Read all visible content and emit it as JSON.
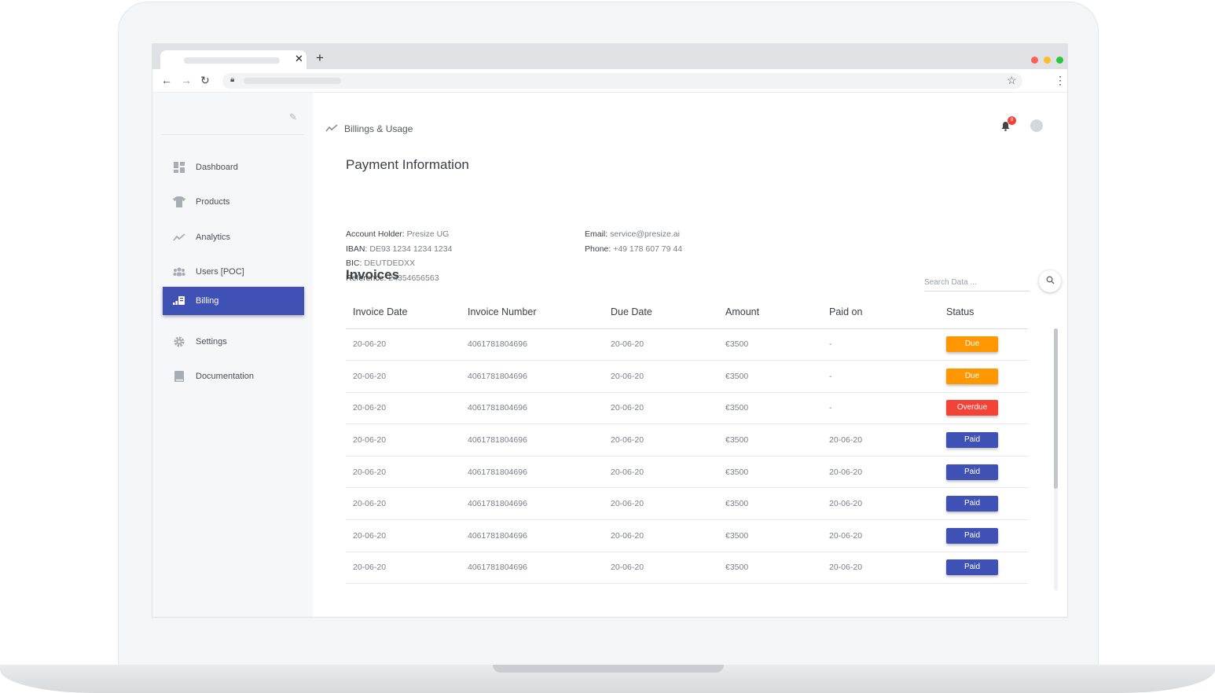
{
  "colors": {
    "accent": "#3f51b5",
    "due": "#ff9800",
    "overdue": "#f44336",
    "paid": "#3f51b5"
  },
  "browser": {
    "window_controls": [
      "#fb5f57",
      "#fdbc2e",
      "#2ac840"
    ],
    "icons": {
      "back": "arrow-left-icon",
      "forward": "arrow-right-icon",
      "reload": "reload-icon",
      "lock": "lock-icon",
      "star": "star-icon",
      "menu": "kebab-menu-icon"
    }
  },
  "sidebar": {
    "items": [
      {
        "label": "Dashboard",
        "icon": "dashboard-icon",
        "active": false
      },
      {
        "label": "Products",
        "icon": "shirt-icon",
        "active": false
      },
      {
        "label": "Analytics",
        "icon": "trend-icon",
        "active": false
      },
      {
        "label": "Users [POC]",
        "icon": "users-icon",
        "active": false
      },
      {
        "label": "Billing",
        "icon": "billing-icon",
        "active": true
      },
      {
        "label": "Settings",
        "icon": "gear-icon",
        "active": false
      },
      {
        "label": "Documentation",
        "icon": "book-icon",
        "active": false
      }
    ]
  },
  "header": {
    "breadcrumb": "Billings & Usage",
    "notification_count": "8"
  },
  "payment": {
    "title": "Payment Information",
    "left": [
      {
        "label": "Account Holder:",
        "value": "Presize UG"
      },
      {
        "label": "IBAN:",
        "value": "DE93 1234 1234 1234"
      },
      {
        "label": "BIC:",
        "value": "DEUTDEDXX"
      },
      {
        "label": "Reference:",
        "value": "24354656563"
      }
    ],
    "right": [
      {
        "label": "Email:",
        "value": "service@presize.ai"
      },
      {
        "label": "Phone:",
        "value": "+49 178 607 79 44"
      }
    ]
  },
  "invoices": {
    "title": "Invoices",
    "search_placeholder": "Search Data ...",
    "columns": [
      "Invoice Date",
      "Invoice Number",
      "Due Date",
      "Amount",
      "Paid on",
      "Status"
    ],
    "rows": [
      {
        "date": "20-06-20",
        "number": "4061781804696",
        "due": "20-06-20",
        "amount": "€3500",
        "paid_on": "-",
        "status": "Due"
      },
      {
        "date": "20-06-20",
        "number": "4061781804696",
        "due": "20-06-20",
        "amount": "€3500",
        "paid_on": "-",
        "status": "Due"
      },
      {
        "date": "20-06-20",
        "number": "4061781804696",
        "due": "20-06-20",
        "amount": "€3500",
        "paid_on": "-",
        "status": "Overdue"
      },
      {
        "date": "20-06-20",
        "number": "4061781804696",
        "due": "20-06-20",
        "amount": "€3500",
        "paid_on": "20-06-20",
        "status": "Paid"
      },
      {
        "date": "20-06-20",
        "number": "4061781804696",
        "due": "20-06-20",
        "amount": "€3500",
        "paid_on": "20-06-20",
        "status": "Paid"
      },
      {
        "date": "20-06-20",
        "number": "4061781804696",
        "due": "20-06-20",
        "amount": "€3500",
        "paid_on": "20-06-20",
        "status": "Paid"
      },
      {
        "date": "20-06-20",
        "number": "4061781804696",
        "due": "20-06-20",
        "amount": "€3500",
        "paid_on": "20-06-20",
        "status": "Paid"
      },
      {
        "date": "20-06-20",
        "number": "4061781804696",
        "due": "20-06-20",
        "amount": "€3500",
        "paid_on": "20-06-20",
        "status": "Paid"
      }
    ]
  }
}
